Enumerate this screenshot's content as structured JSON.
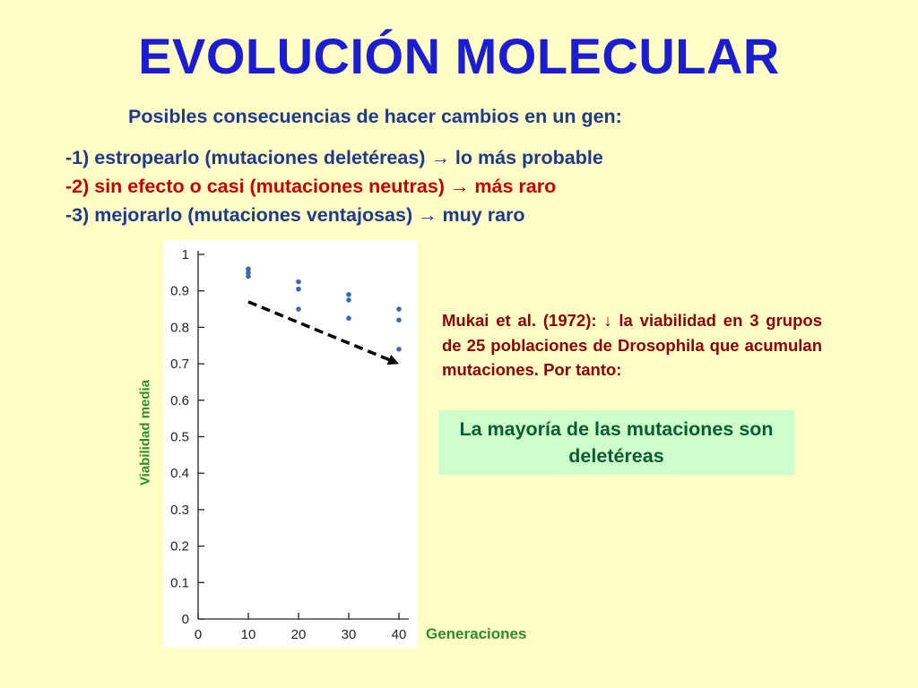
{
  "header": {
    "title": "EVOLUCIÓN MOLECULAR",
    "subtitle": "Posibles consecuencias de hacer cambios en un gen:"
  },
  "consequences": [
    "-1) estropearlo (mutaciones deletéreas) → lo más probable",
    "-2) sin efecto o casi (mutaciones neutras) → más raro",
    "-3) mejorarlo (mutaciones ventajosas) → muy raro"
  ],
  "note": "Mukai et al. (1972): ↓ la viabilidad en 3 grupos de 25 poblaciones de Drosophila que acumulan mutaciones. Por tanto:",
  "conclusion": "La mayoría de las mutaciones son deletéreas",
  "colors": {
    "background": "#ffffc6",
    "title": "#1c1cd0",
    "subtitle": "#1f3a8a",
    "item_red": "#c00000",
    "note": "#8b0000",
    "axis_label": "#2e8b2e",
    "conclusion_bg": "#ccffcc",
    "conclusion_text": "#0b5c2e",
    "points": "#3a6ab5"
  },
  "chart_data": {
    "type": "scatter",
    "xlabel": "Generaciones",
    "ylabel": "Viabilidad media",
    "xlim": [
      0,
      42
    ],
    "ylim": [
      0,
      1
    ],
    "x_ticks": [
      "0",
      "10",
      "20",
      "30",
      "40"
    ],
    "y_ticks": [
      "0",
      "0.1",
      "0.2",
      "0.3",
      "0.4",
      "0.5",
      "0.6",
      "0.7",
      "0.8",
      "0.9",
      "1"
    ],
    "series": [
      {
        "points": [
          [
            10,
            0.96
          ],
          [
            10,
            0.95
          ],
          [
            10,
            0.94
          ],
          [
            20,
            0.925
          ],
          [
            20,
            0.905
          ],
          [
            20,
            0.85
          ],
          [
            30,
            0.89
          ],
          [
            30,
            0.875
          ],
          [
            30,
            0.825
          ],
          [
            40,
            0.85
          ],
          [
            40,
            0.82
          ],
          [
            40,
            0.74
          ]
        ]
      }
    ],
    "trend_arrow": {
      "from": [
        10,
        0.87
      ],
      "to": [
        40,
        0.7
      ],
      "style": "dashed"
    },
    "grid": false
  }
}
